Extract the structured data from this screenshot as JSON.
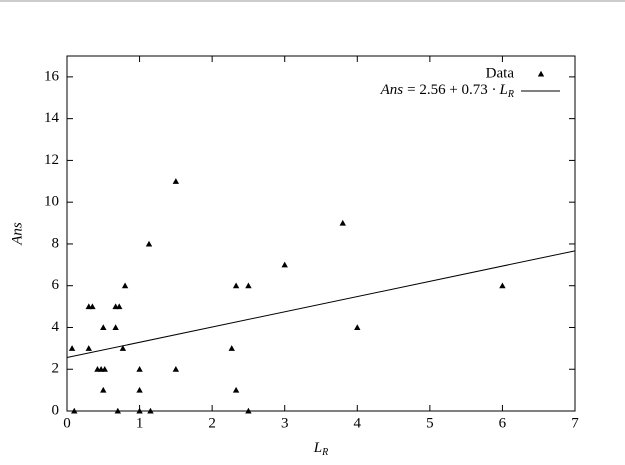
{
  "chart_data": {
    "type": "scatter",
    "x_label": [
      "L",
      "R"
    ],
    "y_label": "Ans",
    "xlim": [
      0,
      7
    ],
    "ylim": [
      0,
      17
    ],
    "xticks": [
      0,
      1,
      2,
      3,
      4,
      5,
      6,
      7
    ],
    "yticks": [
      0,
      2,
      4,
      6,
      8,
      10,
      12,
      14,
      16
    ],
    "legend": "upper right",
    "series": [
      {
        "name": "Data",
        "color": "#000000",
        "x": [
          0.07,
          0.1,
          0.3,
          0.3,
          0.35,
          0.42,
          0.47,
          0.5,
          0.52,
          0.5,
          0.67,
          0.67,
          0.7,
          0.72,
          0.77,
          0.8,
          1,
          1,
          1,
          1.13,
          1.15,
          1.5,
          1.5,
          2.27,
          2.33,
          2.33,
          2.5,
          2.5,
          3,
          3.8,
          4,
          6
        ],
        "values": [
          3,
          0,
          3,
          5,
          5,
          2,
          2,
          4,
          2,
          1,
          5,
          4,
          0,
          5,
          3,
          6,
          2,
          1,
          0,
          8,
          0,
          11,
          2,
          3,
          6,
          1,
          6,
          0,
          7,
          9,
          4,
          6
        ]
      }
    ],
    "fit": {
      "name_parts": [
        "Ans",
        "= 2.56 + 0.73 ·",
        "L",
        "R"
      ],
      "intercept": 2.56,
      "slope": 0.73,
      "color": "#000000"
    }
  }
}
